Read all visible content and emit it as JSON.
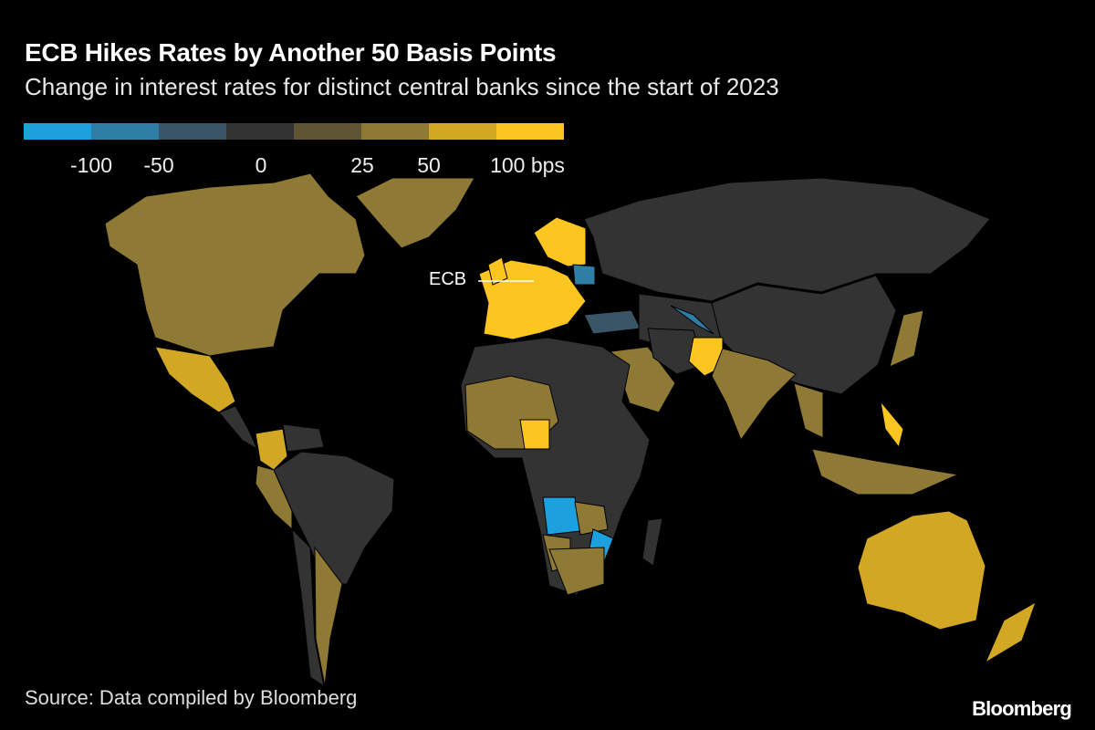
{
  "title": "ECB Hikes Rates by Another 50 Basis Points",
  "subtitle": "Change in interest rates for distinct central banks since the start of 2023",
  "legend": {
    "colors": [
      "#1da1de",
      "#2f7ea6",
      "#3a5566",
      "#333333",
      "#5f5535",
      "#8f7a35",
      "#d1a724",
      "#fcc520"
    ],
    "ticks": [
      "-100",
      "-50",
      "0",
      "25",
      "50",
      "100 bps"
    ]
  },
  "annotation": {
    "ecb": "ECB"
  },
  "source": "Source: Data compiled by Bloomberg",
  "logo": "Bloomberg"
}
